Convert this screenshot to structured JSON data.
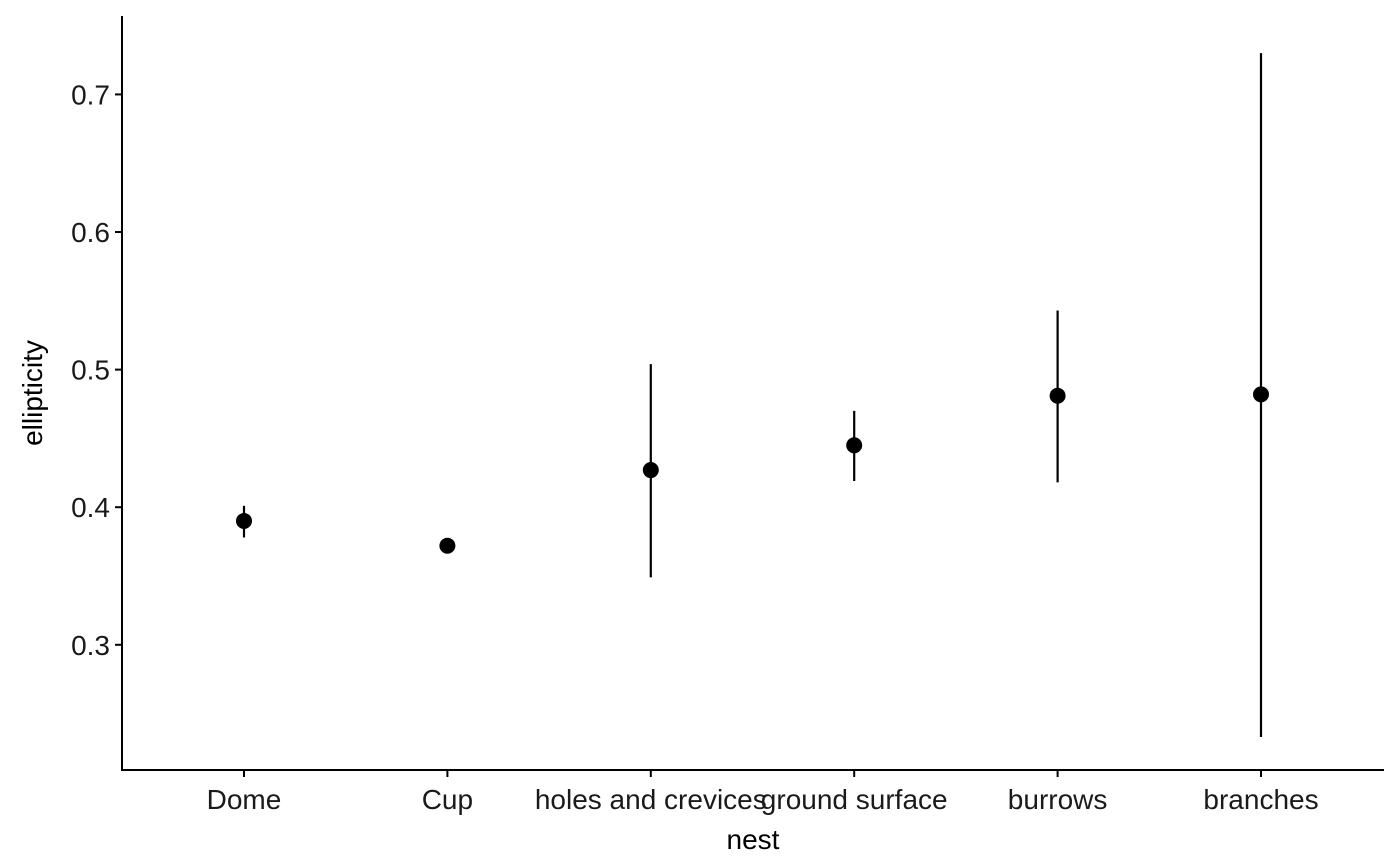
{
  "chart_data": {
    "type": "scatter",
    "title": "",
    "xlabel": "nest",
    "ylabel": "ellipticity",
    "categories": [
      "Dome",
      "Cup",
      "holes and crevices",
      "ground surface",
      "burrows",
      "branches"
    ],
    "series": [
      {
        "y": [
          0.39,
          0.372,
          0.427,
          0.445,
          0.481,
          0.482
        ],
        "ymin": [
          0.378,
          0.372,
          0.349,
          0.419,
          0.418,
          0.233
        ],
        "ymax": [
          0.401,
          0.372,
          0.504,
          0.47,
          0.543,
          0.73
        ]
      }
    ],
    "yticks": [
      0.3,
      0.4,
      0.5,
      0.6,
      0.7
    ],
    "ytick_labels": [
      "0.3",
      "0.4",
      "0.5",
      "0.6",
      "0.7"
    ],
    "ylim": [
      0.209,
      0.757
    ],
    "grid": false,
    "legend": "none",
    "color": "#000000"
  }
}
